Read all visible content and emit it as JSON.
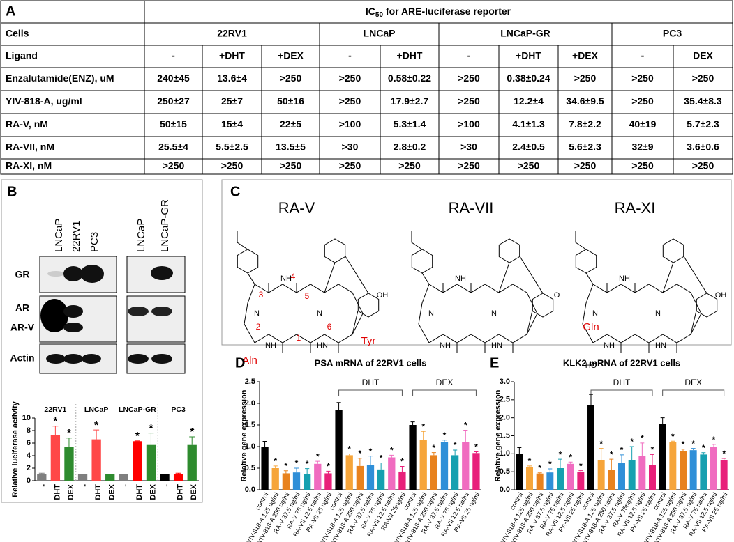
{
  "table": {
    "panel_label": "A",
    "title_main": "IC",
    "title_sub": "50",
    "title_rest": " for ARE-luciferase reporter",
    "rows": [
      {
        "label": "Cells",
        "cells": [
          "22RV1",
          "LNCaP",
          "LNCaP-GR",
          "PC3"
        ]
      },
      {
        "label": "Ligand",
        "cells": [
          "-",
          "+DHT",
          "+DEX",
          "-",
          "+DHT",
          "-",
          "+DHT",
          "+DEX",
          "-",
          "DEX"
        ]
      },
      {
        "label": "Enzalutamide(ENZ), uM",
        "cells": [
          "240±45",
          "13.6±4",
          ">250",
          ">250",
          "0.58±0.22",
          ">250",
          "0.38±0.24",
          ">250",
          ">250",
          ">250"
        ]
      },
      {
        "label": "YIV-818-A, ug/ml",
        "cells": [
          "250±27",
          "25±7",
          "50±16",
          ">250",
          "17.9±2.7",
          ">250",
          "12.2±4",
          "34.6±9.5",
          ">250",
          "35.4±8.3"
        ]
      },
      {
        "label": "RA-V, nM",
        "cells": [
          "50±15",
          "15±4",
          "22±5",
          ">100",
          "5.3±1.4",
          ">100",
          "4.1±1.3",
          "7.8±2.2",
          "40±19",
          "5.7±2.3"
        ]
      },
      {
        "label": "RA-VII, nM",
        "cells": [
          "25.5±4",
          "5.5±2.5",
          "13.5±5",
          ">30",
          "2.8±0.2",
          ">30",
          "2.4±0.5",
          "5.6±2.3",
          "32±9",
          "3.6±0.6"
        ]
      },
      {
        "label": "RA-XI, nM",
        "cells": [
          ">250",
          ">250",
          ">250",
          ">250",
          ">250",
          ">250",
          ">250",
          ">250",
          ">250",
          ">250"
        ]
      }
    ]
  },
  "blot": {
    "panel_label": "B",
    "lanes_left": [
      "LNCaP",
      "22RV1",
      "PC3"
    ],
    "lanes_right": [
      "LNCaP",
      "LNCaP-GR"
    ],
    "bands": [
      "GR",
      "AR",
      "AR-V",
      "Actin"
    ]
  },
  "structures": {
    "panel_label": "C",
    "items": [
      {
        "name": "RA-V",
        "annotations": [
          "1",
          "2",
          "3",
          "4",
          "5",
          "6",
          "Aln",
          "Tyr"
        ],
        "atoms": [
          "NH",
          "N",
          "N",
          "NH",
          "HN",
          "OH"
        ]
      },
      {
        "name": "RA-VII",
        "annotations": [],
        "atoms": [
          "NH",
          "N",
          "N",
          "NH",
          "HN",
          "O"
        ]
      },
      {
        "name": "RA-XI",
        "annotations": [
          "Gln"
        ],
        "atoms": [
          "NH",
          "N",
          "N",
          "NH",
          "HN",
          "OH",
          "HO"
        ]
      }
    ]
  },
  "chart_data": [
    {
      "type": "bar",
      "y_label": "Relative luciferase activity",
      "categories": [
        "-",
        "DHT",
        "DEX",
        "-",
        "DHT",
        "DEX",
        "-",
        "DHT",
        "DEX",
        "-",
        "DHT",
        "DEX"
      ],
      "group_labels": [
        "22RV1",
        "LNCaP",
        "LNCaP-GR",
        "PC3"
      ],
      "values": [
        1,
        7.3,
        5.4,
        1,
        6.6,
        1.0,
        1,
        6.3,
        5.7,
        1,
        1,
        5.7
      ],
      "errors": [
        0.2,
        1.4,
        1.4,
        0,
        1.5,
        0.05,
        0,
        0.05,
        1.9,
        0.05,
        0.2,
        1.3
      ],
      "stars": [
        null,
        "*",
        "*",
        null,
        "*",
        null,
        null,
        "*",
        "*",
        null,
        null,
        "*"
      ],
      "colors": [
        "#7f7f7f",
        "#ff4747",
        "#2e8b2e",
        "#7f7f7f",
        "#ff4747",
        "#2e8b2e",
        "#7f7f7f",
        "#ff0000",
        "#2e8b2e",
        "#000000",
        "#ff0000",
        "#2e8b2e"
      ],
      "ylim": [
        0,
        10
      ],
      "yticks": [
        0,
        2,
        4,
        6,
        8,
        10
      ]
    },
    {
      "type": "bar",
      "panel_label": "D",
      "title": "PSA mRNA of 22RV1 cells",
      "y_label": "Relative gene expression",
      "categories": [
        "control",
        "YIV-818-A 125 ug/ml",
        "YIV-818-A 250 ug/ml",
        "RA-V 37.5 ng/ml",
        "RA-V 75 ng/ml",
        "RA-VII 12.5 ng/ml",
        "RA-VII 25 ng/ml",
        "control",
        "YIV-818-A 125 ug/ml",
        "YIV-818-A 250 ug/ml",
        "RA-V 37.5 ng/ml",
        "RA-V 75 ng/ml",
        "RA-VII 12.5 ng/ml",
        "RA-VII 25ng/ml",
        "control",
        "YIV-818-A 125 ug/ml",
        "YIV-818-A 250 ug/ml",
        "RA-V 37.5 ng/ml",
        "RA-V 75 ng/ml",
        "RA-VII 12.5 ng/ml",
        "RA-VII 25 ng/ml"
      ],
      "group_labels": [
        null,
        "DHT",
        "DEX"
      ],
      "values": [
        1.0,
        0.5,
        0.38,
        0.4,
        0.37,
        0.6,
        0.38,
        1.85,
        0.8,
        0.55,
        0.58,
        0.47,
        0.75,
        0.42,
        1.5,
        1.15,
        0.8,
        1.1,
        0.8,
        1.1,
        0.85
      ],
      "errors": [
        0.12,
        0.05,
        0.06,
        0.1,
        0.12,
        0.06,
        0.05,
        0.17,
        0.03,
        0.18,
        0.2,
        0.15,
        0.05,
        0.12,
        0.07,
        0.2,
        0.06,
        0.05,
        0.12,
        0.28,
        0.03
      ],
      "stars": [
        null,
        "*",
        "*",
        "*",
        "*",
        "*",
        "*",
        null,
        "*",
        "*",
        "*",
        "*",
        "*",
        "*",
        null,
        "*",
        "*",
        "*",
        "*",
        "*",
        "*"
      ],
      "colors": [
        "#000000",
        "#f6a53a",
        "#e8821e",
        "#2f8fd8",
        "#16a0b0",
        "#f06cc0",
        "#e8207a",
        "#000000",
        "#f6a53a",
        "#e8821e",
        "#2f8fd8",
        "#16a0b0",
        "#f06cc0",
        "#e8207a",
        "#000000",
        "#f6a53a",
        "#e8821e",
        "#2f8fd8",
        "#16a0b0",
        "#f06cc0",
        "#e8207a"
      ],
      "ylim": [
        0,
        2.5
      ],
      "yticks": [
        {
          "value": 0,
          "label": "0.0"
        },
        0.5,
        {
          "value": 1,
          "label": "1.0"
        },
        1.5,
        {
          "value": 2,
          "label": "2.0"
        },
        2.5
      ]
    },
    {
      "type": "bar",
      "panel_label": "E",
      "title": "KLK2 mRNA of 22RV1 cells",
      "y_label": "Relative gene expression",
      "categories": [
        "control",
        "YIV-818-A 125 ug/ml",
        "YIV-818-A 250 ug/ml",
        "RA-V 37.5 ng/ml",
        "RA-V 75 ng/ml",
        "RA-VII 12.5 ng/ml",
        "RA-VII 25 ng/ml",
        "control",
        "YIV-818-A 125 ug/ml",
        "YIV-818-A 250 ug/ml",
        "RA-V 37.5 ng/ml",
        "RA-V 75ng/ml",
        "RA-VII 12.5 ng/ml",
        "RA-VII 25 ng/ml",
        "control",
        "YIV-818-A 125 ug/ml",
        "YIV-818-A 250 ug/ml",
        "RA-V 37.5 ng/ml",
        "RA-V 75 ng/ml",
        "RA-VII 12.5 ng/ml",
        "RA-VII 25 ng/ml"
      ],
      "group_labels": [
        null,
        "DHT",
        "DEX"
      ],
      "values": [
        1.0,
        0.63,
        0.45,
        0.48,
        0.6,
        0.72,
        0.5,
        2.35,
        0.82,
        0.55,
        0.75,
        0.82,
        0.93,
        0.68,
        1.82,
        1.32,
        1.08,
        1.1,
        0.98,
        1.2,
        0.83
      ],
      "errors": [
        0.17,
        0.03,
        0.02,
        0.1,
        0.25,
        0.05,
        0.03,
        0.3,
        0.33,
        0.3,
        0.22,
        0.38,
        0.37,
        0.3,
        0.18,
        0.03,
        0.05,
        0.05,
        0.05,
        0.06,
        0.04
      ],
      "stars": [
        null,
        "*",
        "*",
        "*",
        "*",
        "*",
        "*",
        null,
        "*",
        "*",
        "*",
        "*",
        "*",
        "*",
        null,
        "*",
        "*",
        "*",
        "*",
        "*",
        "*"
      ],
      "colors": [
        "#000000",
        "#f6a53a",
        "#e8821e",
        "#2f8fd8",
        "#16a0b0",
        "#f06cc0",
        "#e8207a",
        "#000000",
        "#f6a53a",
        "#e8821e",
        "#2f8fd8",
        "#16a0b0",
        "#f06cc0",
        "#e8207a",
        "#000000",
        "#f6a53a",
        "#e8821e",
        "#2f8fd8",
        "#16a0b0",
        "#f06cc0",
        "#e8207a"
      ],
      "ylim": [
        0,
        3
      ],
      "yticks": [
        {
          "value": 0,
          "label": "0.0"
        },
        0.5,
        {
          "value": 1,
          "label": "1.0"
        },
        1.5,
        {
          "value": 2,
          "label": "2.0"
        },
        2.5,
        {
          "value": 3,
          "label": "3.0"
        }
      ]
    }
  ]
}
